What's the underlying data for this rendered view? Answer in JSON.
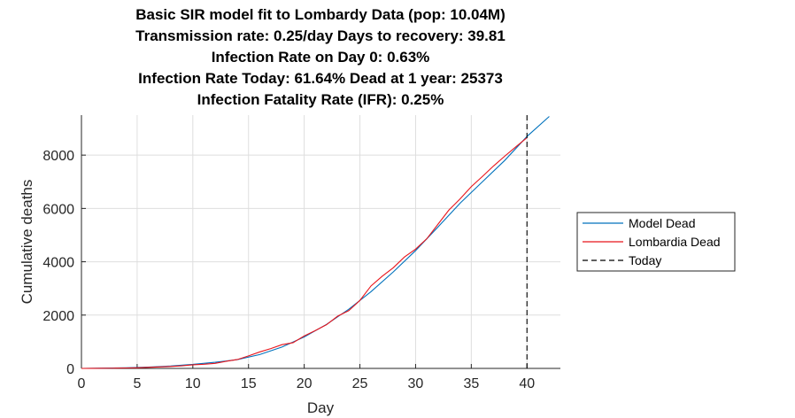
{
  "chart_data": {
    "type": "line",
    "title_lines": [
      "Basic SIR model fit to Lombardy Data (pop: 10.04M)",
      "Transmission rate: 0.25/day Days to recovery: 39.81",
      "Infection Rate on Day 0: 0.63%",
      "Infection Rate Today: 61.64% Dead at 1 year: 25373",
      "Infection Fatality Rate (IFR): 0.25%"
    ],
    "xlabel": "Day",
    "ylabel": "Cumulative deaths",
    "xlim": [
      0,
      43
    ],
    "ylim": [
      0,
      9500
    ],
    "xticks": [
      0,
      5,
      10,
      15,
      20,
      25,
      30,
      35,
      40
    ],
    "yticks": [
      0,
      2000,
      4000,
      6000,
      8000
    ],
    "grid": true,
    "legend_position": "right",
    "today": 40,
    "series": [
      {
        "name": "Model Dead",
        "color": "#0072BD",
        "x": [
          0,
          2,
          4,
          6,
          8,
          10,
          12,
          14,
          16,
          18,
          20,
          22,
          24,
          26,
          28,
          30,
          32,
          34,
          36,
          38,
          40,
          42
        ],
        "y": [
          0,
          10,
          25,
          50,
          90,
          150,
          230,
          330,
          520,
          800,
          1180,
          1650,
          2220,
          2880,
          3620,
          4420,
          5300,
          6200,
          7000,
          7800,
          8700,
          9450
        ]
      },
      {
        "name": "Lombardia Dead",
        "color": "#E8141B",
        "x": [
          0,
          1,
          2,
          3,
          4,
          5,
          6,
          7,
          8,
          9,
          10,
          11,
          12,
          13,
          14,
          15,
          16,
          17,
          18,
          19,
          20,
          21,
          22,
          23,
          24,
          25,
          26,
          27,
          28,
          29,
          30,
          31,
          32,
          33,
          34,
          35,
          36,
          37,
          38,
          39,
          40
        ],
        "y": [
          0,
          2,
          6,
          9,
          17,
          23,
          38,
          55,
          73,
          98,
          135,
          154,
          190,
          267,
          333,
          468,
          617,
          744,
          890,
          966,
          1218,
          1420,
          1640,
          1959,
          2168,
          2549,
          3095,
          3456,
          3776,
          4178,
          4474,
          4861,
          5402,
          5944,
          6360,
          6818,
          7199,
          7593,
          7960,
          8311,
          8656
        ]
      }
    ],
    "legend": [
      {
        "label": "Model Dead",
        "color": "#0072BD",
        "style": "solid"
      },
      {
        "label": "Lombardia Dead",
        "color": "#E8141B",
        "style": "solid"
      },
      {
        "label": "Today",
        "color": "#000000",
        "style": "dashed"
      }
    ]
  }
}
